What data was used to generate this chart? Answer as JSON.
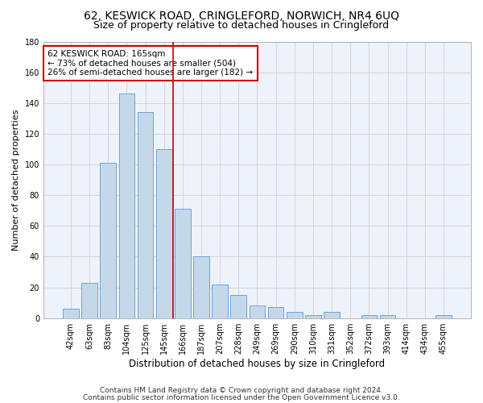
{
  "title": "62, KESWICK ROAD, CRINGLEFORD, NORWICH, NR4 6UQ",
  "subtitle": "Size of property relative to detached houses in Cringleford",
  "xlabel": "Distribution of detached houses by size in Cringleford",
  "ylabel": "Number of detached properties",
  "bar_color": "#c5d8ea",
  "bar_edge_color": "#5b9bd5",
  "background_color": "#eef2fa",
  "grid_color": "#d0d0d0",
  "categories": [
    "42sqm",
    "63sqm",
    "83sqm",
    "104sqm",
    "125sqm",
    "145sqm",
    "166sqm",
    "187sqm",
    "207sqm",
    "228sqm",
    "249sqm",
    "269sqm",
    "290sqm",
    "310sqm",
    "331sqm",
    "352sqm",
    "372sqm",
    "393sqm",
    "414sqm",
    "434sqm",
    "455sqm"
  ],
  "values": [
    6,
    23,
    101,
    146,
    134,
    110,
    71,
    40,
    22,
    15,
    8,
    7,
    4,
    2,
    4,
    0,
    2,
    2,
    0,
    0,
    2
  ],
  "ylim": [
    0,
    180
  ],
  "yticks": [
    0,
    20,
    40,
    60,
    80,
    100,
    120,
    140,
    160,
    180
  ],
  "vline_x": 5.5,
  "vline_color": "#cc0000",
  "annotation_title": "62 KESWICK ROAD: 165sqm",
  "annotation_line1": "← 73% of detached houses are smaller (504)",
  "annotation_line2": "26% of semi-detached houses are larger (182) →",
  "annotation_box_color": "white",
  "annotation_box_edge": "#cc0000",
  "footer1": "Contains HM Land Registry data © Crown copyright and database right 2024.",
  "footer2": "Contains public sector information licensed under the Open Government Licence v3.0.",
  "title_fontsize": 10,
  "subtitle_fontsize": 9,
  "xlabel_fontsize": 8.5,
  "ylabel_fontsize": 8,
  "tick_fontsize": 7,
  "annotation_fontsize": 7.5,
  "footer_fontsize": 6.5
}
